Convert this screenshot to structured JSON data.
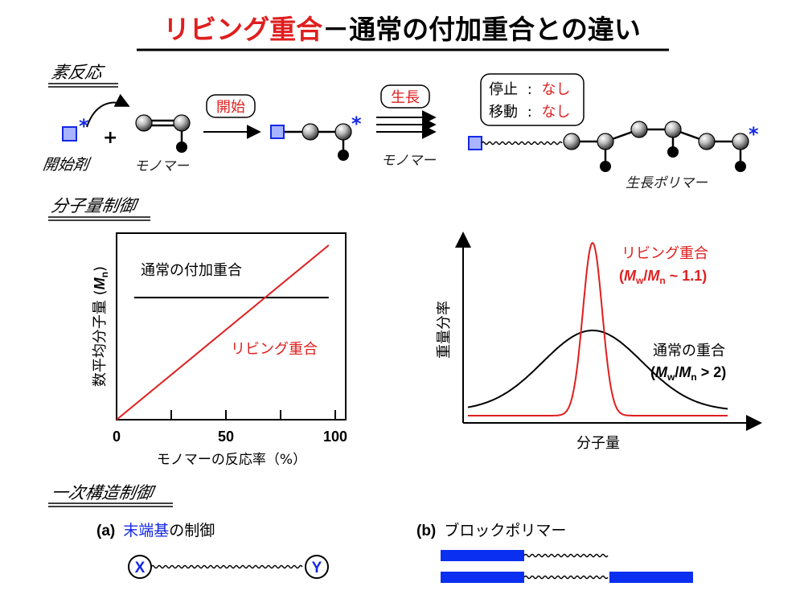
{
  "title": {
    "highlight": "リビング重合",
    "rest": "－通常の付加重合との違い"
  },
  "sections": {
    "elementary": "素反応",
    "mw_control": "分子量制御",
    "primary_control": "一次構造制御"
  },
  "reaction": {
    "initiator_label": "開始剤",
    "plus": "+",
    "monomer_label_1": "モノマー",
    "initiation_box": "開始",
    "propagation_box": "生長",
    "monomer_label_2": "モノマー",
    "termination_label": "停止",
    "termination_value": "なし",
    "transfer_label": "移動",
    "transfer_value": "なし",
    "colon": ":",
    "polymer_label": "生長ポリマー",
    "active_mark": "*"
  },
  "mn_chart": {
    "ylabel": "数平均分子量 (Mn)",
    "ylabel_main": "数平均分子量 (",
    "ylabel_M": "M",
    "ylabel_sub": "n",
    "ylabel_close": ")",
    "xlabel": "モノマーの反応率（%）",
    "xlim": [
      0,
      100
    ],
    "x_tick_labels": [
      "0",
      "50",
      "100"
    ],
    "conventional_label": "通常の付加重合",
    "living_label": "リビング重合"
  },
  "chart_data": {
    "type": "line",
    "xlabel": "モノマーの反応率（%）",
    "ylabel": "数平均分子量 (Mn)",
    "xlim": [
      0,
      100
    ],
    "x_ticks": [
      0,
      25,
      50,
      75,
      100
    ],
    "x_tick_labels": [
      "0",
      "50",
      "100"
    ],
    "series": [
      {
        "name": "通常の付加重合",
        "x": [
          8,
          97
        ],
        "y": [
          0.7,
          0.7
        ],
        "color": "#000000"
      },
      {
        "name": "リビング重合",
        "x": [
          0,
          97
        ],
        "y": [
          0,
          1.0
        ],
        "color": "#e02020"
      }
    ]
  },
  "mwd_chart": {
    "ylabel": "重量分率",
    "xlabel": "分子量",
    "living_label": "リビング重合",
    "living_pdi": "(Mw/Mn ~ 1.1)",
    "living_pdi_parts": {
      "open": "(",
      "M1": "M",
      "s1": "w",
      "slash": "/",
      "M2": "M",
      "s2": "n",
      "rest": " ~ 1.1)"
    },
    "conventional_label": "通常の重合",
    "conventional_pdi": "(Mw/Mn > 2)",
    "conventional_pdi_parts": {
      "open": "(",
      "M1": "M",
      "s1": "w",
      "slash": "/",
      "M2": "M",
      "s2": "n",
      "rest": " > 2)"
    }
  },
  "structure": {
    "a_prefix": "(a)",
    "a_highlight": "末端基",
    "a_suffix": "の制御",
    "end_x": "X",
    "end_y": "Y",
    "b_prefix": "(b)",
    "b_text": "ブロックポリマー"
  },
  "colors": {
    "red": "#e01e1e",
    "blue": "#1428e6",
    "initiator_fill": "#a8b4ff",
    "black": "#000000",
    "block_blue": "#0a2ff0"
  }
}
